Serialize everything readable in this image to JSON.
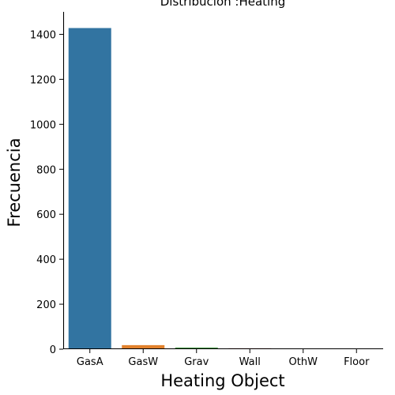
{
  "chart_data": {
    "type": "bar",
    "title": "Distribución :Heating",
    "xlabel": "Heating Object",
    "ylabel": "Frecuencia",
    "categories": [
      "GasA",
      "GasW",
      "Grav",
      "Wall",
      "OthW",
      "Floor"
    ],
    "values": [
      1428,
      18,
      7,
      4,
      2,
      1
    ],
    "colors": [
      "#3274a1",
      "#e1812c",
      "#3a923a",
      "#c03d3e",
      "#9372b2",
      "#c87f2c"
    ],
    "ylim": [
      0,
      1500
    ],
    "yticks": [
      0,
      200,
      400,
      600,
      800,
      1000,
      1200,
      1400
    ],
    "grid": false,
    "legend": "none"
  }
}
